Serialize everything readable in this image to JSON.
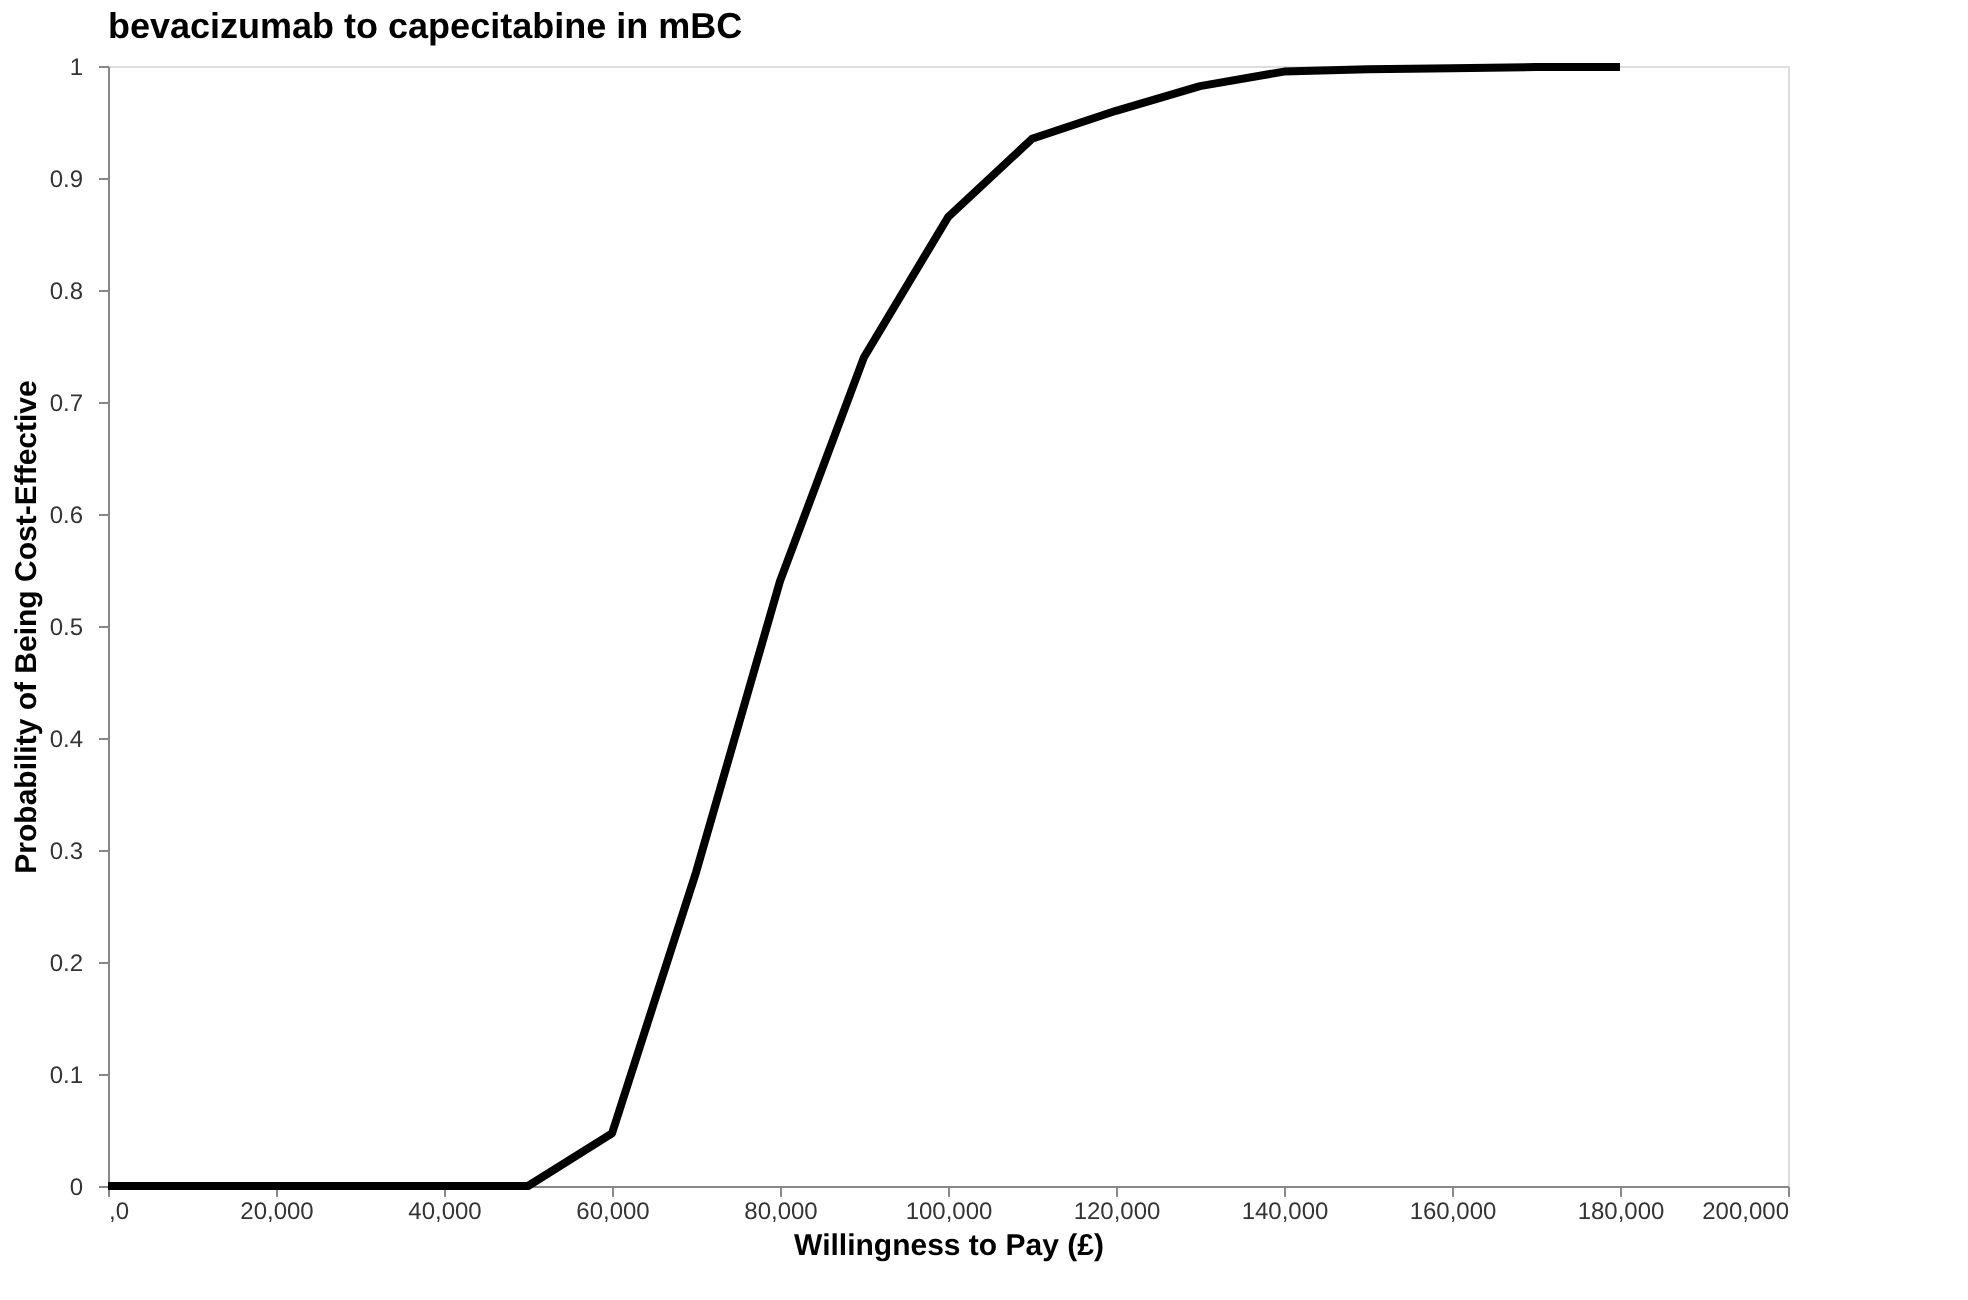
{
  "chart_data": {
    "type": "line",
    "title": "bevacizumab to capecitabine in mBC",
    "xlabel": "Willingness to Pay (£)",
    "ylabel": "Probability of Being Cost-Effective",
    "x": [
      0,
      10000,
      20000,
      30000,
      40000,
      50000,
      60000,
      70000,
      80000,
      90000,
      100000,
      110000,
      120000,
      130000,
      140000,
      150000,
      160000,
      170000,
      180000
    ],
    "series": [
      {
        "color": "#000000",
        "values": [
          0,
          0,
          0,
          0,
          0,
          0,
          0.047,
          0.28,
          0.54,
          0.74,
          0.865,
          0.935,
          0.96,
          0.982,
          0.995,
          0.997,
          0.998,
          0.999,
          0.999
        ]
      }
    ],
    "xlim": [
      0,
      200000
    ],
    "xticks": [
      {
        "value": 0,
        "label": ",0"
      },
      {
        "value": 20000,
        "label": "20,000"
      },
      {
        "value": 40000,
        "label": "40,000"
      },
      {
        "value": 60000,
        "label": "60,000"
      },
      {
        "value": 80000,
        "label": "80,000"
      },
      {
        "value": 100000,
        "label": "100,000"
      },
      {
        "value": 120000,
        "label": "120,000"
      },
      {
        "value": 140000,
        "label": "140,000"
      },
      {
        "value": 160000,
        "label": "160,000"
      },
      {
        "value": 180000,
        "label": "180,000"
      },
      {
        "value": 200000,
        "label": "200,000"
      }
    ],
    "ylim": [
      0,
      1
    ],
    "yticks": [
      0,
      0.1,
      0.2,
      0.3,
      0.4,
      0.5,
      0.6,
      0.7,
      0.8,
      0.9,
      1
    ],
    "grid": false,
    "marker": "none",
    "line_style": "solid"
  }
}
